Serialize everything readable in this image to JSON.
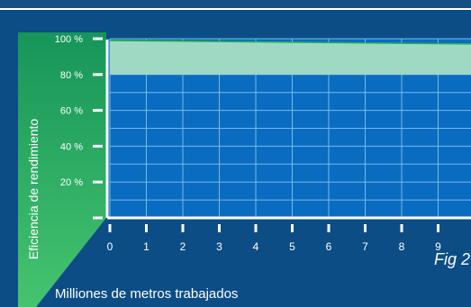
{
  "chart_data": {
    "type": "area",
    "title": "",
    "xlabel": "Milliones de metros trabajados",
    "ylabel": "Eficiencia de rendimiento",
    "x_ticks": [
      "0",
      "1",
      "2",
      "3",
      "4",
      "5",
      "6",
      "7",
      "8",
      "9",
      "1"
    ],
    "y_ticks": [
      "100 %",
      "80 %",
      "60 %",
      "40 %",
      "20 %"
    ],
    "y_tick_values": [
      100,
      80,
      60,
      40,
      20
    ],
    "xlim": [
      0,
      10
    ],
    "ylim": [
      0,
      100
    ],
    "grid": true,
    "series": [
      {
        "x": [
          0,
          10
        ],
        "upper": [
          99,
          97
        ],
        "lower": [
          80,
          80
        ],
        "fill_color": "#9fd9c4",
        "line_color": "#26b24a"
      }
    ],
    "caption": "Fig 2"
  },
  "colors": {
    "background": "#0c4d86",
    "plot_background": "#0a6cc0",
    "grid": "#7bb8e8",
    "axis": "#ffffff",
    "ylabel_panel_top": "#1a9e5c",
    "ylabel_panel_bottom": "#3fbf6f"
  }
}
